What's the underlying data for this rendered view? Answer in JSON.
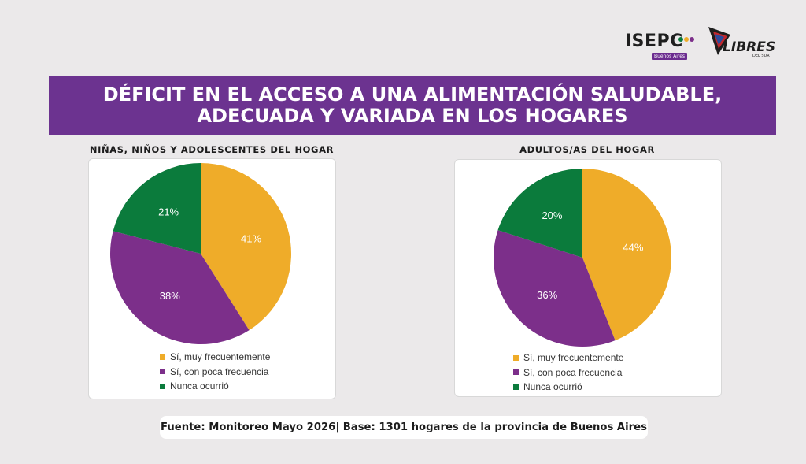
{
  "logos": {
    "isepc": "ISEPC",
    "isepc_sub": "Buenos Aires",
    "libres": "LIBRES",
    "libres_sub": "DEL SUR"
  },
  "banner": {
    "line1": "DÉFICIT EN EL ACCESO A UNA ALIMENTACIÓN SALUDABLE,",
    "line2": "ADECUADA Y VARIADA EN LOS HOGARES"
  },
  "colors": {
    "banner": "#6c3390",
    "yellow": "#efac29",
    "purple": "#7c2f8a",
    "green": "#0b7b3c"
  },
  "chart_data": [
    {
      "type": "pie",
      "title": "NIÑAS, NIÑOS Y ADOLESCENTES  DEL HOGAR",
      "labels": [
        "Sí, muy frecuentemente",
        "Sí, con poca frecuencia",
        "Nunca ocurrió"
      ],
      "values": [
        41,
        38,
        21
      ],
      "value_labels": [
        "41%",
        "38%",
        "21%"
      ],
      "colors": [
        "#efac29",
        "#7c2f8a",
        "#0b7b3c"
      ],
      "legend_position": "bottom"
    },
    {
      "type": "pie",
      "title": "ADULTOS/AS DEL HOGAR",
      "labels": [
        "Sí, muy frecuentemente",
        "Sí, con poca frecuencia",
        "Nunca ocurrió"
      ],
      "values": [
        44,
        36,
        20
      ],
      "value_labels": [
        "44%",
        "36%",
        "20%"
      ],
      "colors": [
        "#efac29",
        "#7c2f8a",
        "#0b7b3c"
      ],
      "legend_position": "bottom"
    }
  ],
  "footer": "Fuente: Monitoreo Mayo 2026| Base: 1301 hogares de la provincia de Buenos Aires"
}
